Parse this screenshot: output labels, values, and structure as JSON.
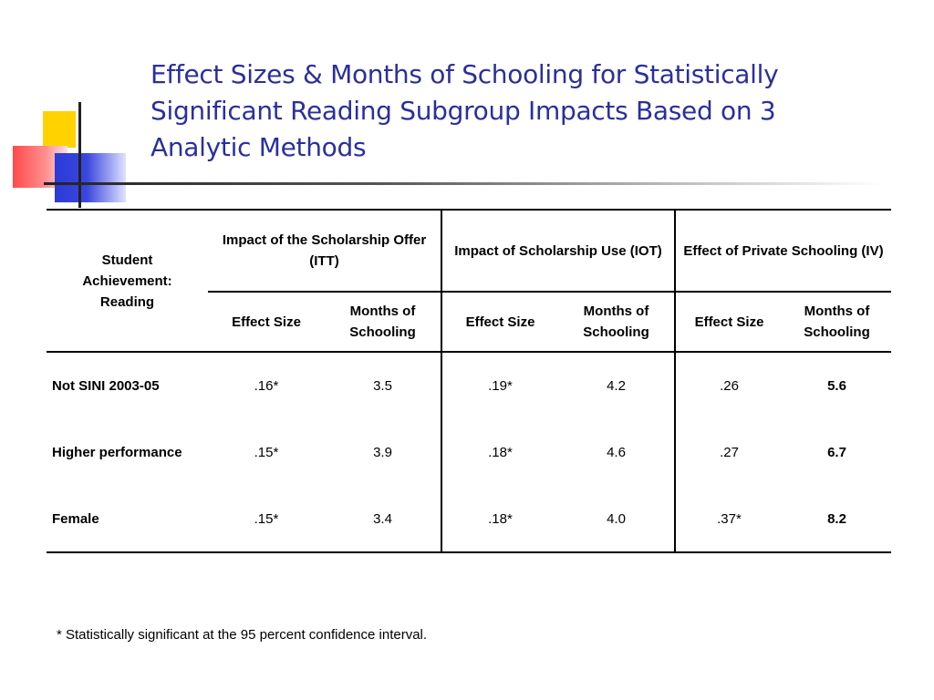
{
  "title": "Effect Sizes & Months of Schooling for Statistically Significant Reading Subgroup Impacts Based on 3 Analytic Methods",
  "table": {
    "row_header": "Student Achievement: Reading",
    "groups": [
      "Impact of the Scholarship Offer (ITT)",
      "Impact of Scholarship Use (IOT)",
      "Effect of Private Schooling (IV)"
    ],
    "sub_effect": "Effect Size",
    "sub_months": "Months of Schooling",
    "rows": [
      {
        "label": "Not SINI 2003-05",
        "itt_es": ".16*",
        "itt_m": "3.5",
        "iot_es": ".19*",
        "iot_m": "4.2",
        "iv_es": ".26",
        "iv_m": "5.6"
      },
      {
        "label": "Higher performance",
        "itt_es": ".15*",
        "itt_m": "3.9",
        "iot_es": ".18*",
        "iot_m": "4.6",
        "iv_es": ".27",
        "iv_m": "6.7"
      },
      {
        "label": "Female",
        "itt_es": ".15*",
        "itt_m": "3.4",
        "iot_es": ".18*",
        "iot_m": "4.0",
        "iv_es": ".37*",
        "iv_m": "8.2"
      }
    ]
  },
  "footnote": "* Statistically significant at the 95 percent confidence interval."
}
